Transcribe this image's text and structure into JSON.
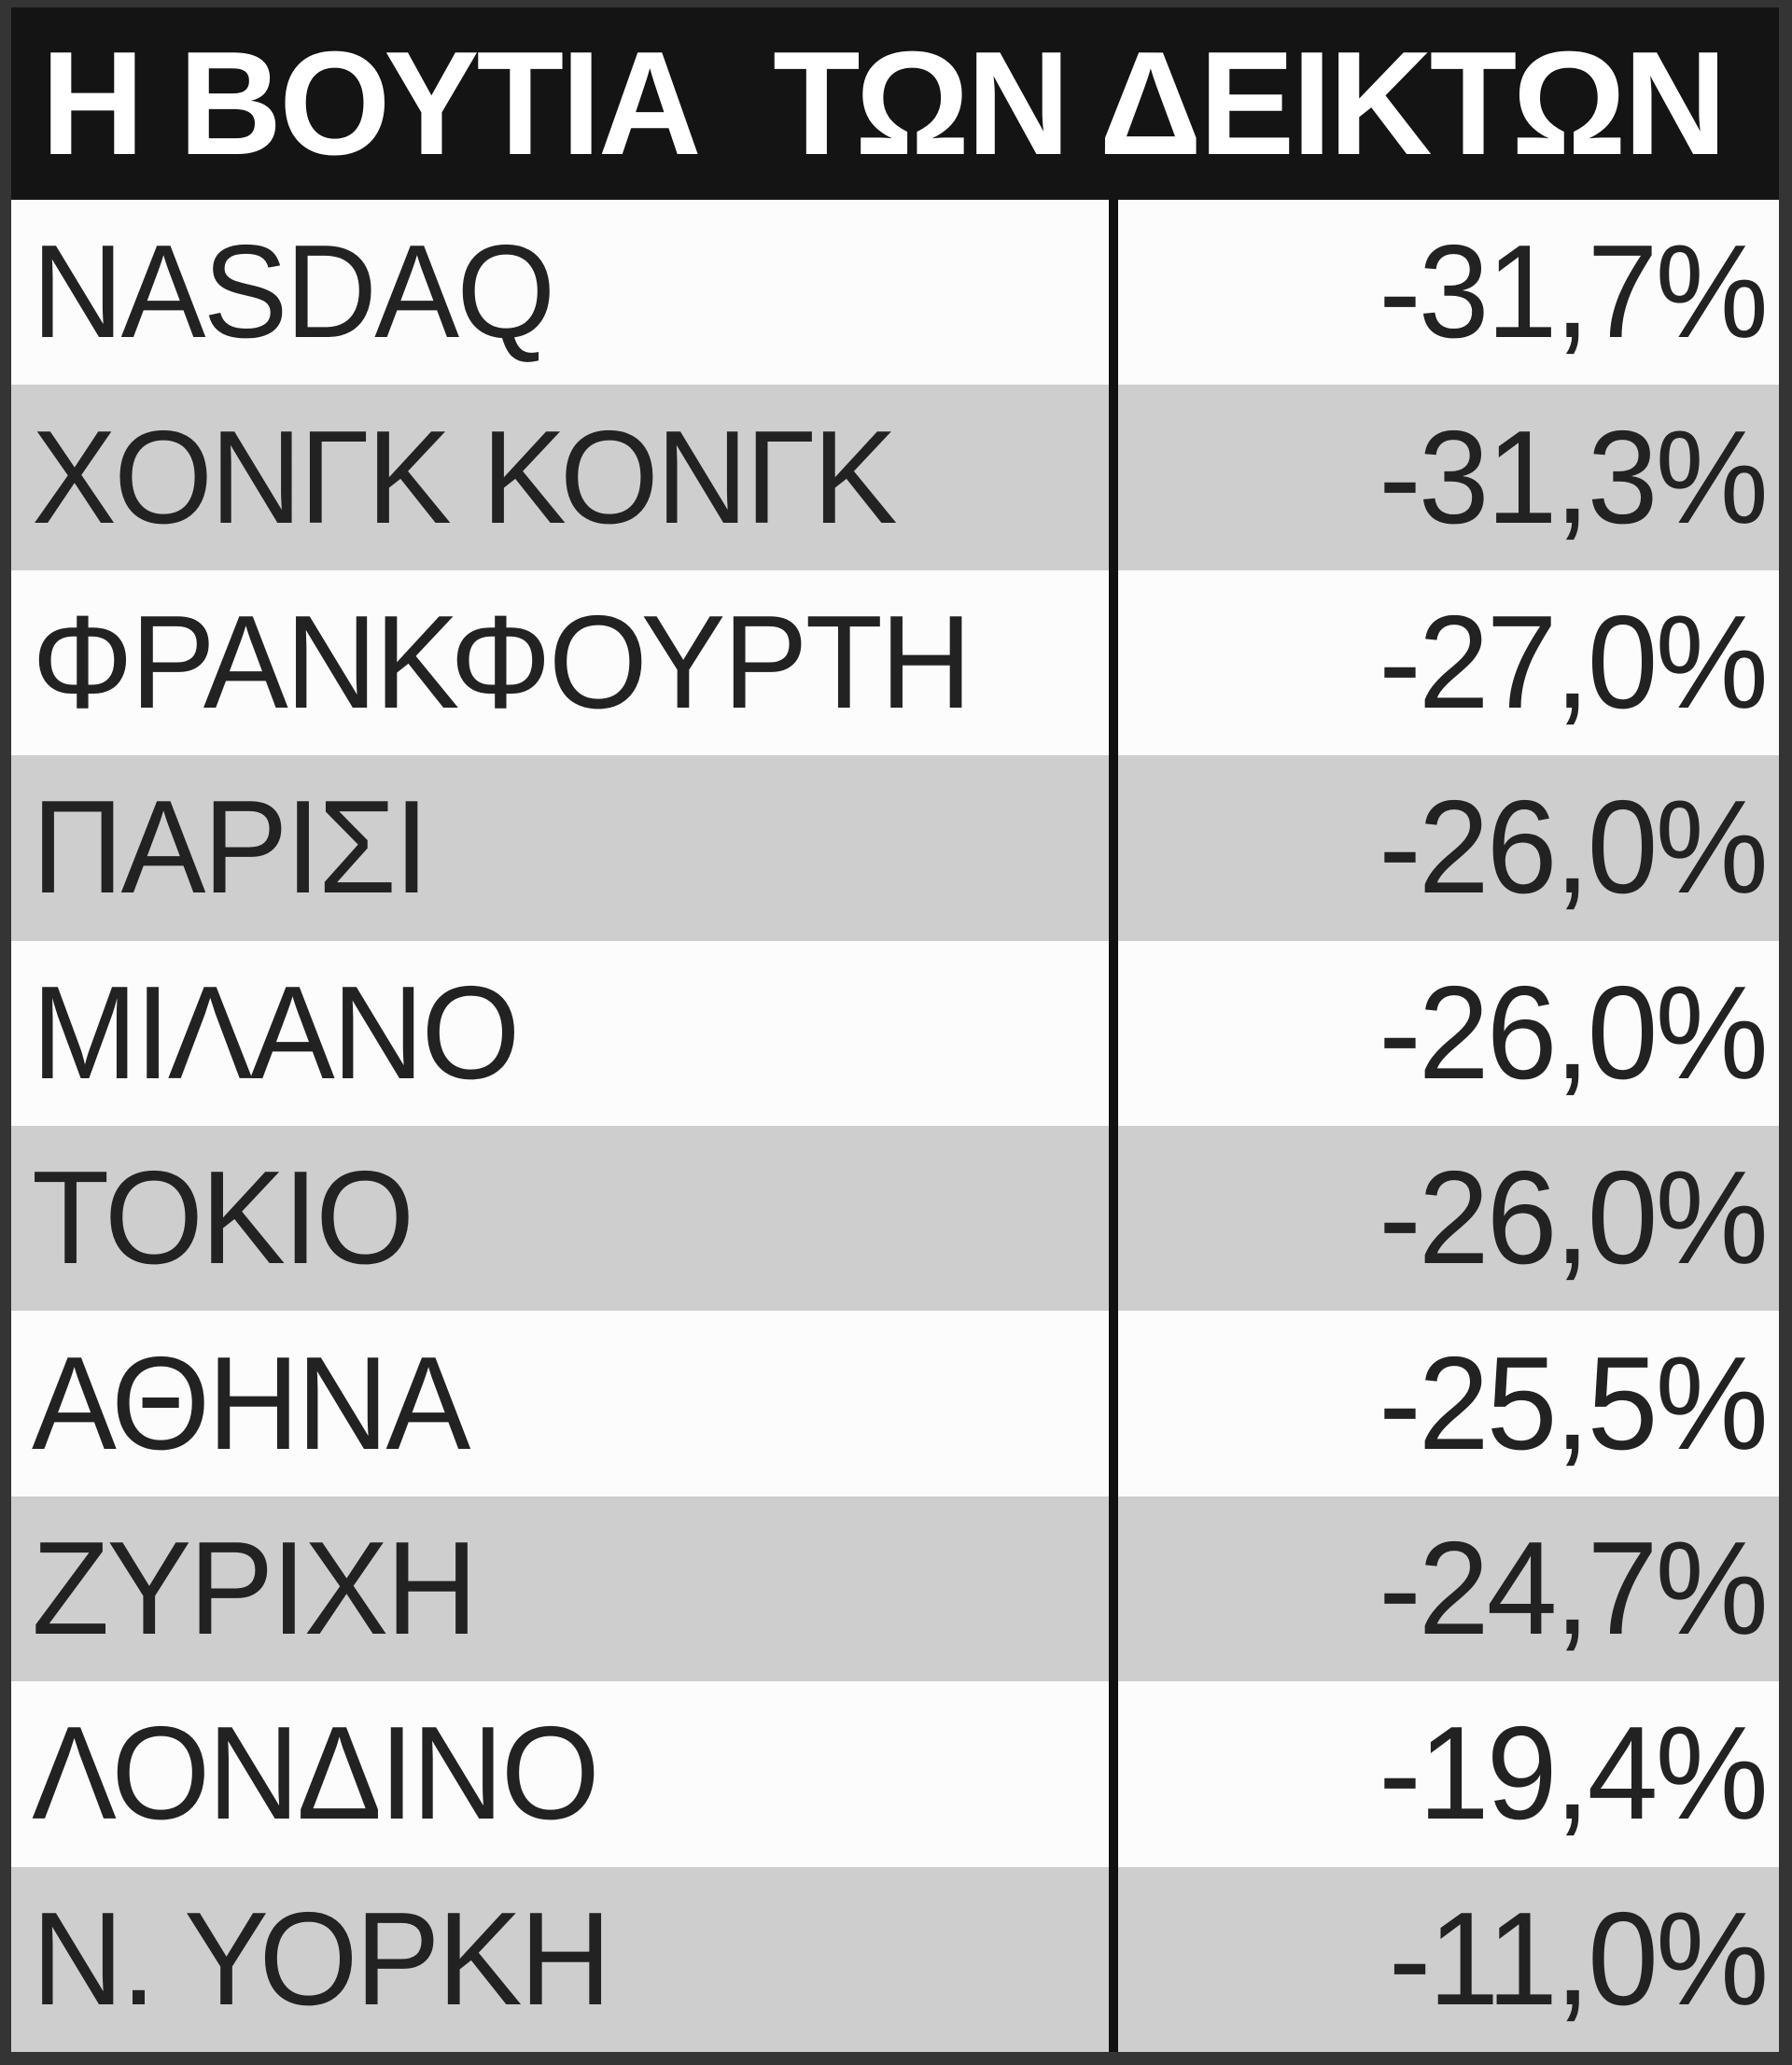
{
  "title": "Η ΒΟΥΤΙΑ  ΤΩΝ ΔΕΙΚΤΩΝ",
  "colors": {
    "header_bg": "#141414",
    "frame": "#343434",
    "row_white": "#fcfcfc",
    "row_gray": "#cecece",
    "divider": "#111111",
    "title_text": "#ffffff",
    "row_text": "#222222"
  },
  "table": {
    "rows": [
      {
        "label": "NASDAQ",
        "value": "-31,7%"
      },
      {
        "label": "ΧΟΝΓΚ ΚΟΝΓΚ",
        "value": "-31,3%"
      },
      {
        "label": "ΦΡΑΝΚΦΟΥΡΤΗ",
        "value": "-27,0%"
      },
      {
        "label": "ΠΑΡΙΣΙ",
        "value": "-26,0%"
      },
      {
        "label": "ΜΙΛΑΝΟ",
        "value": "-26,0%"
      },
      {
        "label": "ΤΟΚΙΟ",
        "value": "-26,0%"
      },
      {
        "label": "ΑΘΗΝΑ",
        "value": "-25,5%"
      },
      {
        "label": "ΖΥΡΙΧΗ",
        "value": "-24,7%"
      },
      {
        "label": "ΛΟΝΔΙΝΟ",
        "value": "-19,4%"
      },
      {
        "label": "Ν. ΥΟΡΚΗ",
        "value": "-11,0%"
      }
    ]
  },
  "chart_data": {
    "type": "table",
    "title": "Η ΒΟΥΤΙΑ ΤΩΝ ΔΕΙΚΤΩΝ",
    "categories": [
      "NASDAQ",
      "ΧΟΝΓΚ ΚΟΝΓΚ",
      "ΦΡΑΝΚΦΟΥΡΤΗ",
      "ΠΑΡΙΣΙ",
      "ΜΙΛΑΝΟ",
      "ΤΟΚΙΟ",
      "ΑΘΗΝΑ",
      "ΖΥΡΙΧΗ",
      "ΛΟΝΔΙΝΟ",
      "Ν. ΥΟΡΚΗ"
    ],
    "values": [
      -31.7,
      -31.3,
      -27.0,
      -26.0,
      -26.0,
      -26.0,
      -25.5,
      -24.7,
      -19.4,
      -11.0
    ],
    "unit": "%",
    "value_format": "comma-decimal",
    "layout": "two-column table, label left / value right, zebra striping"
  }
}
